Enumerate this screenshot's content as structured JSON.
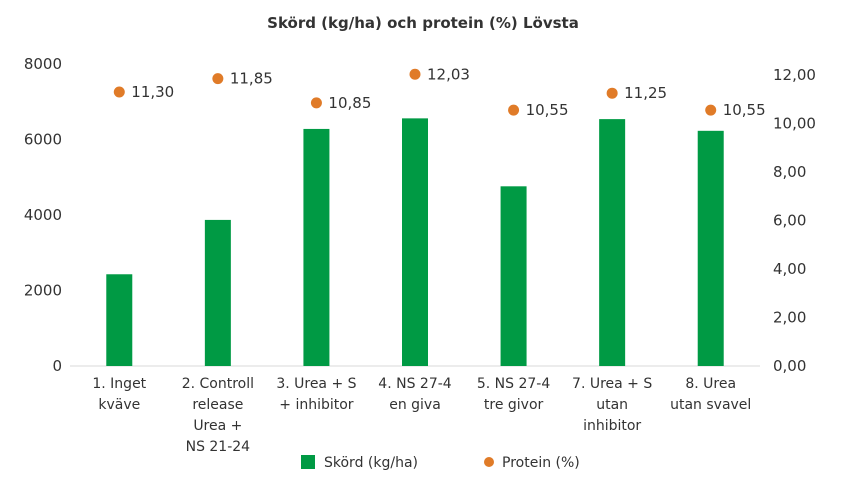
{
  "chart_data": {
    "type": "bar",
    "title": "Skörd (kg/ha) och protein (%) Lövsta",
    "categories": [
      [
        "1. Inget",
        "kväve"
      ],
      [
        "2. Controll",
        "release",
        "Urea +",
        "NS 21-24"
      ],
      [
        "3. Urea + S",
        "+ inhibitor"
      ],
      [
        "4. NS 27-4",
        "en giva"
      ],
      [
        "5. NS 27-4",
        "tre givor"
      ],
      [
        "7. Urea + S",
        "utan",
        "inhibitor"
      ],
      [
        "8. Urea",
        "utan svavel"
      ]
    ],
    "series": [
      {
        "name": "Skörd (kg/ha)",
        "type": "bar",
        "axis": "left",
        "color": "#009a44",
        "values": [
          2430,
          3870,
          6280,
          6560,
          4760,
          6540,
          6230
        ]
      },
      {
        "name": "Protein (%)",
        "type": "scatter",
        "axis": "right",
        "color": "#e07b28",
        "values": [
          11.3,
          11.85,
          10.85,
          12.03,
          10.55,
          11.25,
          10.55
        ],
        "labels": [
          "11,30",
          "11,85",
          "10,85",
          "12,03",
          "10,55",
          "11,25",
          "10,55"
        ]
      }
    ],
    "y_left": {
      "ylim": [
        0,
        8000
      ],
      "ticks": [
        "0",
        "2000",
        "4000",
        "6000",
        "8000"
      ],
      "tick_values": [
        0,
        2000,
        4000,
        6000,
        8000
      ]
    },
    "y_right": {
      "ylim": [
        0,
        12
      ],
      "ticks": [
        "0,00",
        "2,00",
        "4,00",
        "6,00",
        "8,00",
        "10,00",
        "12,00"
      ],
      "tick_values": [
        0,
        2,
        4,
        6,
        8,
        10,
        12
      ]
    },
    "grid": false,
    "legend": "bottom",
    "xlabel": "",
    "ylabel": ""
  }
}
